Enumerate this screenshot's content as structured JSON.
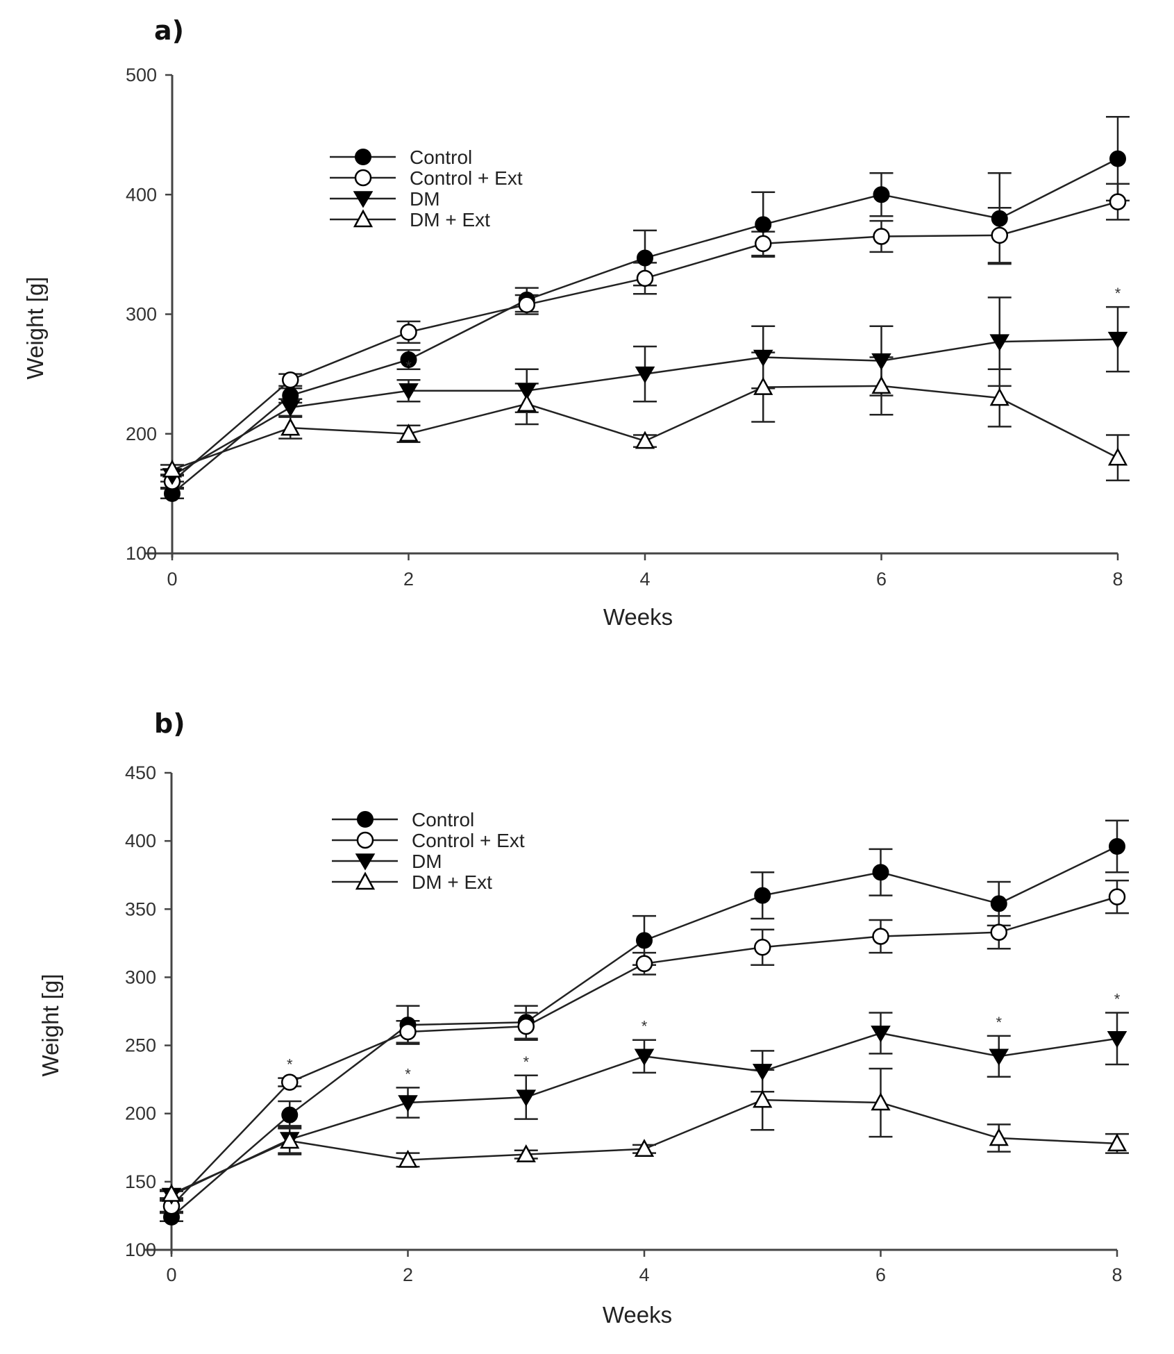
{
  "chart_data": [
    {
      "panel": "a)",
      "type": "line",
      "title": "",
      "xlabel": "Weeks",
      "ylabel": "Weight [g]",
      "xlim": [
        0,
        8
      ],
      "ylim": [
        100,
        500
      ],
      "xticks": [
        0,
        2,
        4,
        6,
        8
      ],
      "yticks": [
        100,
        200,
        300,
        400,
        500
      ],
      "x": [
        0,
        1,
        2,
        3,
        4,
        5,
        6,
        7,
        8
      ],
      "legend": "upper-left",
      "grid": false,
      "series": [
        {
          "name": "Control",
          "marker": "filled-circle",
          "values": [
            150,
            232,
            262,
            312,
            347,
            375,
            400,
            380,
            430
          ],
          "errors": [
            4,
            6,
            8,
            10,
            23,
            27,
            18,
            38,
            35
          ]
        },
        {
          "name": "Control + Ext",
          "marker": "open-circle",
          "values": [
            160,
            245,
            285,
            308,
            330,
            359,
            365,
            366,
            394
          ],
          "errors": [
            5,
            5,
            9,
            8,
            13,
            10,
            13,
            23,
            15
          ]
        },
        {
          "name": "DM",
          "marker": "filled-triangle-down",
          "values": [
            165,
            222,
            236,
            236,
            250,
            264,
            261,
            277,
            279
          ],
          "errors": [
            5,
            7,
            9,
            18,
            23,
            26,
            29,
            37,
            27
          ]
        },
        {
          "name": "DM + Ext",
          "marker": "open-triangle-up",
          "values": [
            170,
            205,
            200,
            225,
            194,
            239,
            240,
            230,
            180
          ],
          "errors": [
            4,
            9,
            7,
            17,
            5,
            29,
            24,
            24,
            19
          ]
        }
      ],
      "annotations": [
        {
          "text": "*",
          "x": 2,
          "series": "DM"
        },
        {
          "text": "*",
          "x": 8,
          "series": "DM"
        }
      ]
    },
    {
      "panel": "b)",
      "type": "line",
      "title": "",
      "xlabel": "Weeks",
      "ylabel": "Weight [g]",
      "xlim": [
        0,
        8
      ],
      "ylim": [
        100,
        450
      ],
      "xticks": [
        0,
        2,
        4,
        6,
        8
      ],
      "yticks": [
        100,
        150,
        200,
        250,
        300,
        350,
        400,
        450
      ],
      "x": [
        0,
        1,
        2,
        3,
        4,
        5,
        6,
        7,
        8
      ],
      "legend": "upper-left",
      "grid": false,
      "series": [
        {
          "name": "Control",
          "marker": "filled-circle",
          "values": [
            124,
            199,
            265,
            267,
            327,
            360,
            377,
            354,
            396
          ],
          "errors": [
            3,
            10,
            14,
            12,
            18,
            17,
            17,
            16,
            19
          ]
        },
        {
          "name": "Control + Ext",
          "marker": "open-circle",
          "values": [
            132,
            223,
            260,
            264,
            310,
            322,
            330,
            333,
            359
          ],
          "errors": [
            4,
            3,
            8,
            10,
            8,
            13,
            12,
            12,
            12
          ]
        },
        {
          "name": "DM",
          "marker": "filled-triangle-down",
          "values": [
            140,
            181,
            208,
            212,
            242,
            231,
            259,
            242,
            255
          ],
          "errors": [
            3,
            10,
            11,
            16,
            12,
            15,
            15,
            15,
            19
          ]
        },
        {
          "name": "DM + Ext",
          "marker": "open-triangle-up",
          "values": [
            141,
            180,
            166,
            170,
            174,
            210,
            208,
            182,
            178
          ],
          "errors": [
            3,
            10,
            5,
            3,
            3,
            22,
            25,
            10,
            7
          ]
        }
      ],
      "annotations": [
        {
          "text": "*",
          "x": 1,
          "series": "Control + Ext"
        },
        {
          "text": "*",
          "x": 2,
          "series": "DM"
        },
        {
          "text": "*",
          "x": 3,
          "series": "DM"
        },
        {
          "text": "*",
          "x": 4,
          "series": "DM"
        },
        {
          "text": "*",
          "x": 7,
          "series": "DM"
        },
        {
          "text": "*",
          "x": 8,
          "series": "DM"
        }
      ]
    }
  ]
}
